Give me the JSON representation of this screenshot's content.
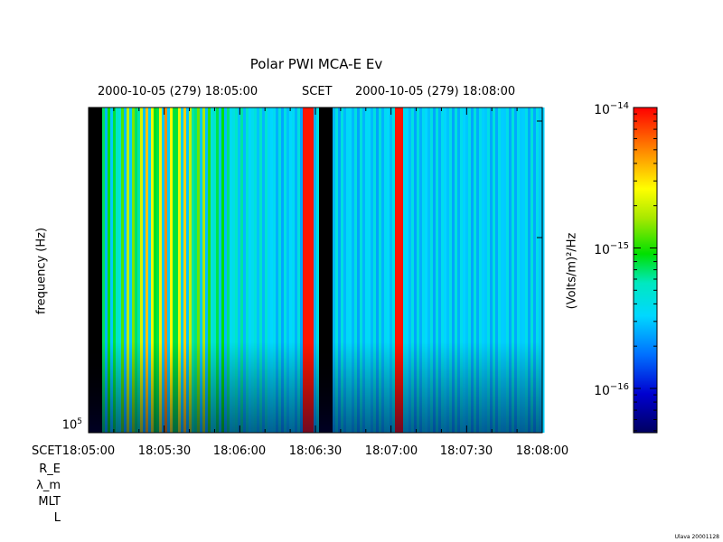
{
  "chart_data": {
    "type": "heatmap",
    "title": "Polar PWI MCA-E Ev",
    "top_axis": {
      "left_label": "2000-10-05 (279) 18:05:00",
      "mid_label": "SCET",
      "right_label": "2000-10-05 (279) 18:08:00"
    },
    "ylabel": "frequency (Hz)",
    "y_tick_base": "10",
    "y_tick_exp": "5",
    "x_axis": {
      "row_label": "SCET",
      "tick_labels": [
        "18:05:00",
        "18:05:30",
        "18:06:00",
        "18:06:30",
        "18:07:00",
        "18:07:30",
        "18:08:00"
      ]
    },
    "extra_rows": [
      "R_E",
      "λ_m",
      "MLT",
      "L"
    ],
    "colorbar": {
      "label": "(Volts/m)²/Hz",
      "ticks": [
        {
          "base": "10",
          "exp": "−14"
        },
        {
          "base": "10",
          "exp": "−15"
        },
        {
          "base": "10",
          "exp": "−16"
        }
      ]
    },
    "data_gaps": [
      {
        "from": "18:05:00",
        "to": "18:05:05"
      },
      {
        "from": "18:06:31",
        "to": "18:06:37"
      }
    ],
    "saturated_columns": [
      "18:06:27",
      "18:07:03"
    ]
  },
  "footer": "Ulava 20001128"
}
